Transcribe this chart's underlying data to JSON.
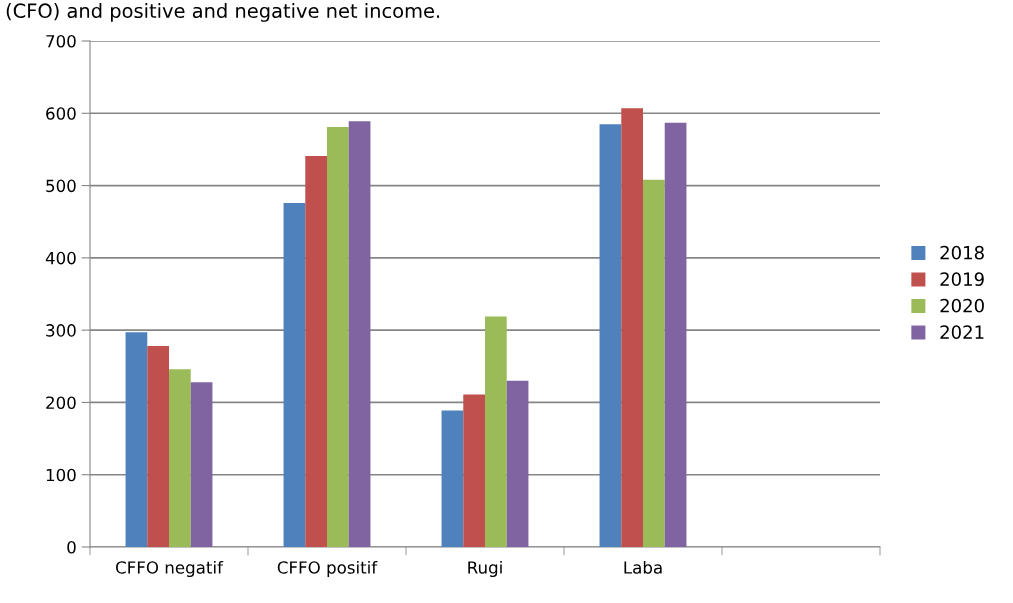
{
  "chart_data": {
    "type": "bar",
    "categories": [
      "CFFO negatif",
      "CFFO positif",
      "Rugi",
      "Laba",
      null
    ],
    "series": [
      {
        "name": "2018",
        "color": "#4f81bd",
        "values": [
          297,
          476,
          189,
          585,
          null
        ]
      },
      {
        "name": "2019",
        "color": "#c0504d",
        "values": [
          278,
          541,
          211,
          607,
          null
        ]
      },
      {
        "name": "2020",
        "color": "#9bbb59",
        "values": [
          246,
          581,
          319,
          508,
          null
        ]
      },
      {
        "name": "2021",
        "color": "#8064a2",
        "values": [
          228,
          589,
          230,
          587,
          null
        ]
      }
    ],
    "ylim": [
      0,
      700
    ],
    "yticks": [
      0,
      100,
      200,
      300,
      400,
      500,
      600,
      700
    ],
    "grid": "y",
    "legend": "right",
    "annotations": [
      "(CFO) and positive and negative net income."
    ]
  }
}
